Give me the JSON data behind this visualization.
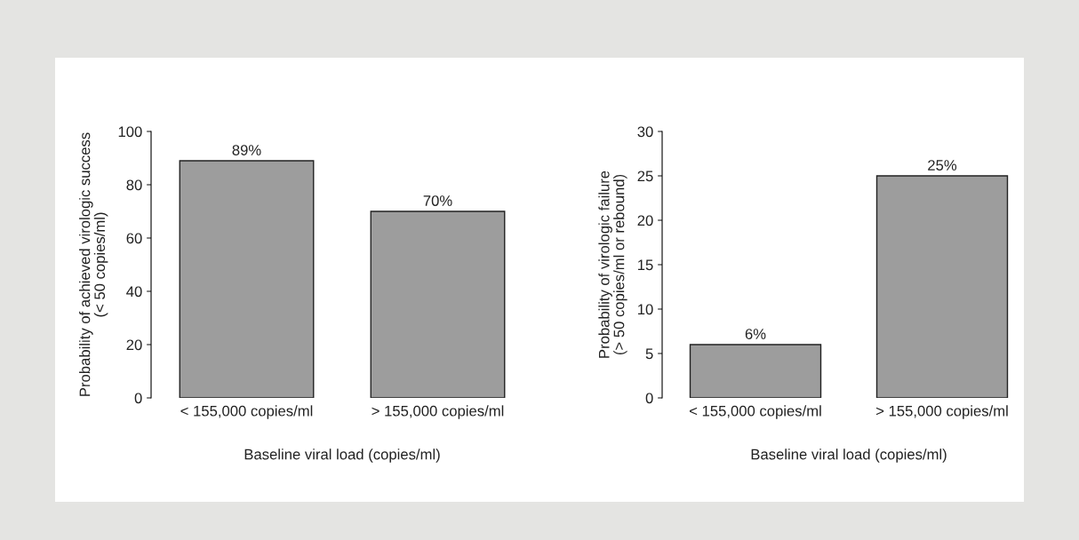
{
  "chart_data": [
    {
      "type": "bar",
      "xlabel": "Baseline viral load (copies/ml)",
      "ylabel": "Probability of achieved virologic success\n(< 50 copies/ml)",
      "categories": [
        "< 155,000 copies/ml",
        "> 155,000 copies/ml"
      ],
      "values": [
        89,
        70
      ],
      "value_labels": [
        "89%",
        "70%"
      ],
      "color": "#9d9d9d",
      "ylim": [
        0,
        100
      ],
      "yticks": [
        0,
        20,
        40,
        60,
        80,
        100
      ],
      "grid": false,
      "legend": false
    },
    {
      "type": "bar",
      "xlabel": "Baseline viral load (copies/ml)",
      "ylabel": "Probability of virologic failure\n(> 50 copies/ml or rebound)",
      "categories": [
        "< 155,000 copies/ml",
        "> 155,000 copies/ml"
      ],
      "values": [
        6,
        25
      ],
      "value_labels": [
        "6%",
        "25%"
      ],
      "color": "#9d9d9d",
      "ylim": [
        0,
        30
      ],
      "yticks": [
        0,
        5,
        10,
        15,
        20,
        25,
        30
      ],
      "grid": false,
      "legend": false
    }
  ]
}
